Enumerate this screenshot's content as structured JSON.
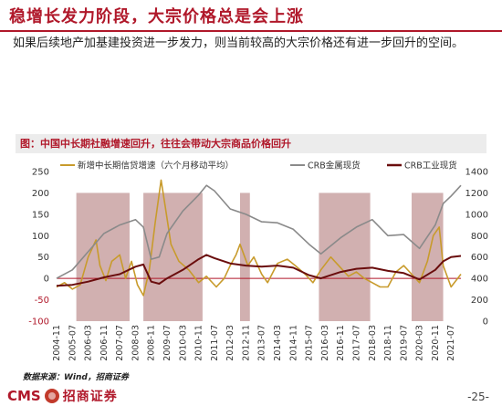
{
  "header": {
    "title": "稳增长发力阶段，大宗价格总是会上涨",
    "subtitle": "如果后续地产加基建投资进一步发力，则当前较高的大宗价格还有进一步回升的空间。"
  },
  "figure": {
    "title": "图：中国中长期社融增速回升，往往会带动大宗商品价格回升"
  },
  "footer": {
    "source": "数据来源：Wind，招商证券",
    "logo_text": "CMS",
    "logo_cn": "招商证券",
    "page": "-25-"
  },
  "colors": {
    "brand": "#b0182a",
    "shade": "#c9a2a2",
    "gold": "#c89b2c",
    "gray": "#8a8a8a",
    "maroon": "#6a0d0d"
  },
  "chart_data": {
    "type": "line",
    "x_start": "2004-11",
    "x_end": "2021-12",
    "x_tick_labels": [
      "2004-11",
      "2005-07",
      "2006-03",
      "2006-11",
      "2007-07",
      "2008-03",
      "2008-11",
      "2009-07",
      "2010-03",
      "2010-11",
      "2011-07",
      "2012-03",
      "2012-11",
      "2013-07",
      "2014-03",
      "2014-11",
      "2015-07",
      "2016-03",
      "2016-11",
      "2017-07",
      "2018-03",
      "2018-11",
      "2019-07",
      "2020-03",
      "2020-11",
      "2021-07"
    ],
    "y_left": {
      "min": -100,
      "max": 250,
      "ticks": [
        -100,
        -50,
        0,
        50,
        100,
        150,
        200,
        250
      ]
    },
    "y_right": {
      "min": 0,
      "max": 1400,
      "ticks": [
        0,
        200,
        400,
        600,
        800,
        1000,
        1200,
        1400
      ]
    },
    "shaded_periods": [
      [
        "2005-09",
        "2007-12"
      ],
      [
        "2008-07",
        "2011-01"
      ],
      [
        "2012-08",
        "2013-01"
      ],
      [
        "2015-12",
        "2018-02"
      ],
      [
        "2019-11",
        "2021-03"
      ]
    ],
    "series": [
      {
        "name": "新增中长期信贷增速（六个月移动平均）",
        "axis": "left",
        "color": "#c89b2c",
        "points": [
          [
            "2004-11",
            -20
          ],
          [
            "2005-03",
            -10
          ],
          [
            "2005-07",
            -25
          ],
          [
            "2005-11",
            -15
          ],
          [
            "2006-03",
            50
          ],
          [
            "2006-07",
            90
          ],
          [
            "2006-09",
            30
          ],
          [
            "2006-12",
            -5
          ],
          [
            "2007-03",
            40
          ],
          [
            "2007-07",
            55
          ],
          [
            "2007-10",
            0
          ],
          [
            "2008-01",
            40
          ],
          [
            "2008-04",
            -15
          ],
          [
            "2008-07",
            -40
          ],
          [
            "2008-10",
            20
          ],
          [
            "2009-01",
            130
          ],
          [
            "2009-04",
            230
          ],
          [
            "2009-06",
            170
          ],
          [
            "2009-09",
            80
          ],
          [
            "2010-01",
            40
          ],
          [
            "2010-06",
            20
          ],
          [
            "2010-11",
            -10
          ],
          [
            "2011-03",
            5
          ],
          [
            "2011-08",
            -20
          ],
          [
            "2011-12",
            0
          ],
          [
            "2012-03",
            30
          ],
          [
            "2012-06",
            55
          ],
          [
            "2012-08",
            80
          ],
          [
            "2012-12",
            30
          ],
          [
            "2013-03",
            50
          ],
          [
            "2013-07",
            10
          ],
          [
            "2013-10",
            -10
          ],
          [
            "2014-03",
            35
          ],
          [
            "2014-08",
            45
          ],
          [
            "2014-12",
            30
          ],
          [
            "2015-05",
            10
          ],
          [
            "2015-09",
            -10
          ],
          [
            "2016-01",
            20
          ],
          [
            "2016-06",
            50
          ],
          [
            "2016-11",
            25
          ],
          [
            "2017-03",
            5
          ],
          [
            "2017-07",
            15
          ],
          [
            "2017-11",
            0
          ],
          [
            "2018-03",
            -10
          ],
          [
            "2018-07",
            -20
          ],
          [
            "2018-11",
            -20
          ],
          [
            "2019-03",
            15
          ],
          [
            "2019-07",
            30
          ],
          [
            "2019-11",
            10
          ],
          [
            "2020-03",
            -10
          ],
          [
            "2020-07",
            40
          ],
          [
            "2020-10",
            100
          ],
          [
            "2021-01",
            120
          ],
          [
            "2021-03",
            30
          ],
          [
            "2021-07",
            -20
          ],
          [
            "2021-12",
            10
          ]
        ]
      },
      {
        "name": "CRB金属现货",
        "axis": "right",
        "color": "#8a8a8a",
        "points": [
          [
            "2004-11",
            400
          ],
          [
            "2005-07",
            480
          ],
          [
            "2006-03",
            650
          ],
          [
            "2006-11",
            820
          ],
          [
            "2007-07",
            900
          ],
          [
            "2008-03",
            950
          ],
          [
            "2008-07",
            880
          ],
          [
            "2008-11",
            580
          ],
          [
            "2009-03",
            600
          ],
          [
            "2009-07",
            820
          ],
          [
            "2010-03",
            1030
          ],
          [
            "2010-11",
            1180
          ],
          [
            "2011-03",
            1270
          ],
          [
            "2011-07",
            1220
          ],
          [
            "2012-03",
            1050
          ],
          [
            "2012-11",
            1000
          ],
          [
            "2013-07",
            930
          ],
          [
            "2014-03",
            920
          ],
          [
            "2014-11",
            860
          ],
          [
            "2015-07",
            720
          ],
          [
            "2016-01",
            630
          ],
          [
            "2016-11",
            780
          ],
          [
            "2017-07",
            880
          ],
          [
            "2018-03",
            950
          ],
          [
            "2018-11",
            800
          ],
          [
            "2019-07",
            810
          ],
          [
            "2020-03",
            680
          ],
          [
            "2020-11",
            900
          ],
          [
            "2021-03",
            1100
          ],
          [
            "2021-07",
            1170
          ],
          [
            "2021-12",
            1270
          ]
        ]
      },
      {
        "name": "CRB工业现货",
        "axis": "right",
        "color": "#6a0d0d",
        "points": [
          [
            "2004-11",
            330
          ],
          [
            "2005-07",
            340
          ],
          [
            "2006-03",
            370
          ],
          [
            "2006-11",
            410
          ],
          [
            "2007-07",
            440
          ],
          [
            "2008-03",
            510
          ],
          [
            "2008-07",
            530
          ],
          [
            "2008-11",
            370
          ],
          [
            "2009-03",
            350
          ],
          [
            "2009-07",
            400
          ],
          [
            "2010-03",
            480
          ],
          [
            "2010-11",
            580
          ],
          [
            "2011-03",
            620
          ],
          [
            "2011-07",
            590
          ],
          [
            "2012-03",
            540
          ],
          [
            "2012-11",
            520
          ],
          [
            "2013-07",
            510
          ],
          [
            "2014-03",
            520
          ],
          [
            "2014-11",
            500
          ],
          [
            "2015-07",
            430
          ],
          [
            "2016-01",
            400
          ],
          [
            "2016-11",
            460
          ],
          [
            "2017-07",
            490
          ],
          [
            "2018-03",
            500
          ],
          [
            "2018-11",
            470
          ],
          [
            "2019-07",
            450
          ],
          [
            "2020-03",
            390
          ],
          [
            "2020-11",
            480
          ],
          [
            "2021-03",
            560
          ],
          [
            "2021-07",
            600
          ],
          [
            "2021-12",
            610
          ]
        ]
      }
    ]
  }
}
